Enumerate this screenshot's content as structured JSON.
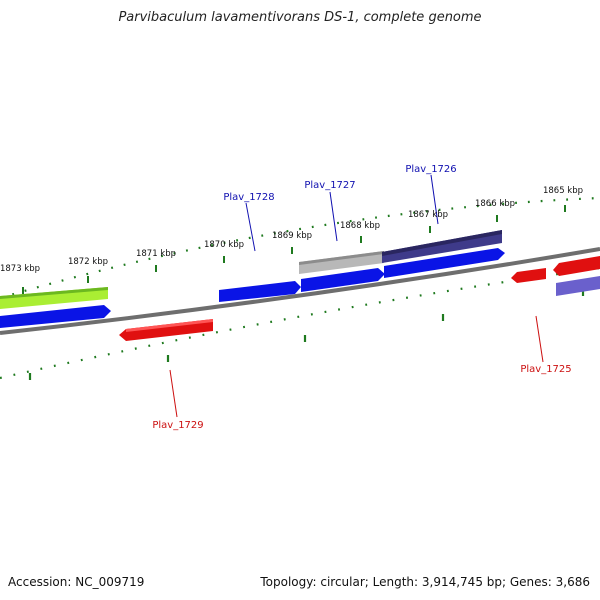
{
  "title": "Parvibaculum lavamentivorans DS-1, complete genome",
  "footer": {
    "accession": "Accession: NC_009719",
    "summary": "Topology: circular; Length: 3,914,745 bp; Genes: 3,686"
  },
  "colors": {
    "backbone": "#7a7a7a",
    "ticks": "#1f7a1f",
    "gene_blue": "#0a14e6",
    "gene_red": "#e01010",
    "gene_lime": "#aaee33",
    "gene_gray": "#b8b8b8",
    "gene_navy": "#3e3a8a",
    "gene_lavender": "#6a60cc",
    "label_blue": "#1010b0",
    "label_red": "#cc1010"
  },
  "kbp_labels": [
    "1873 kbp",
    "1872 kbp",
    "1871 kbp",
    "1870 kbp",
    "1869 kbp",
    "1868 kbp",
    "1867 kbp",
    "1866 kbp",
    "1865 kbp"
  ],
  "gene_labels": [
    {
      "name": "Plav_1728",
      "color": "blue"
    },
    {
      "name": "Plav_1727",
      "color": "blue"
    },
    {
      "name": "Plav_1726",
      "color": "blue"
    },
    {
      "name": "Plav_1729",
      "color": "red"
    },
    {
      "name": "Plav_1725",
      "color": "red"
    }
  ],
  "icons": [
    "circular-genome-map"
  ]
}
